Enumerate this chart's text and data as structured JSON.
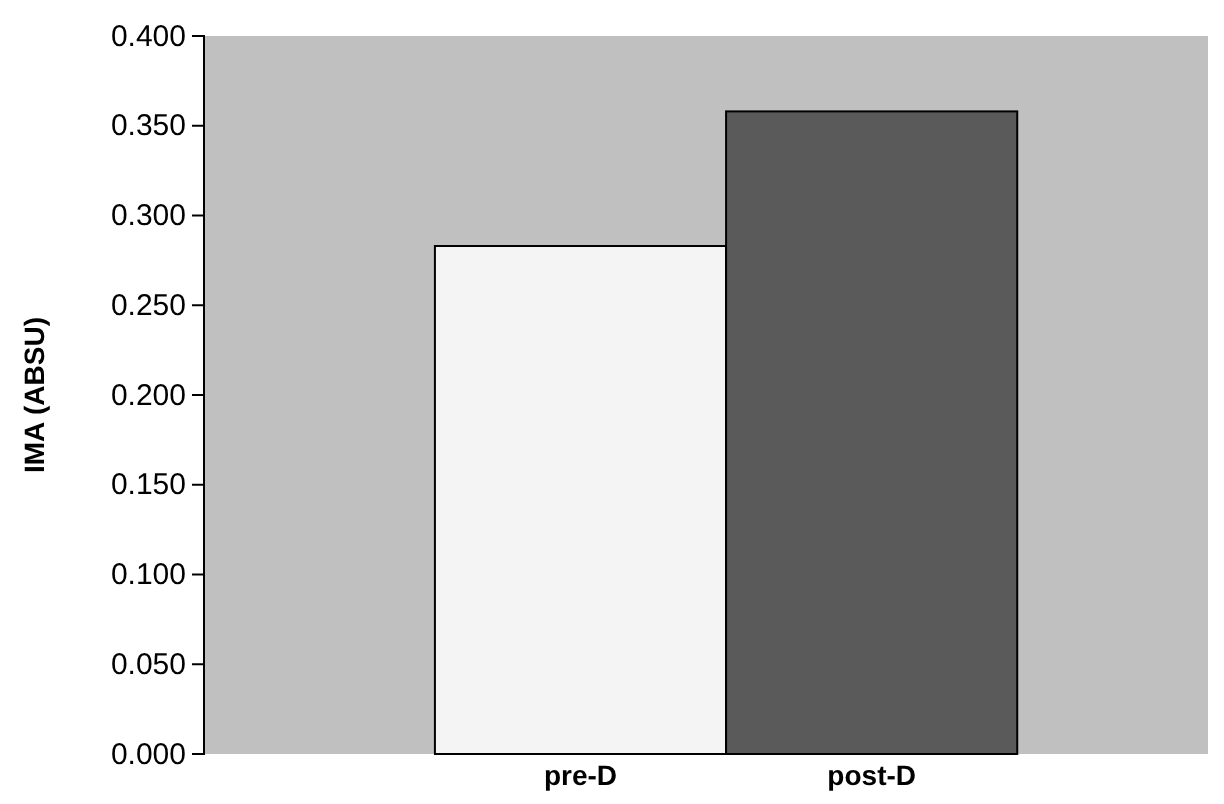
{
  "chart_data": {
    "type": "bar",
    "ylabel": "IMA (ABSU)",
    "categories": [
      "pre-D",
      "post-D"
    ],
    "values": [
      0.283,
      0.358
    ],
    "colors": [
      "#f4f4f4",
      "#5a5a5a"
    ],
    "ylim": [
      0,
      0.4
    ],
    "yticks": [
      {
        "value": 0,
        "label": "0.000"
      },
      {
        "value": 0.05,
        "label": "0.050"
      },
      {
        "value": 0.1,
        "label": "0.100"
      },
      {
        "value": 0.15,
        "label": "0.150"
      },
      {
        "value": 0.2,
        "label": "0.200"
      },
      {
        "value": 0.25,
        "label": "0.250"
      },
      {
        "value": 0.3,
        "label": "0.300"
      },
      {
        "value": 0.35,
        "label": "0.350"
      },
      {
        "value": 0.4,
        "label": "0.400"
      }
    ],
    "grid": false
  }
}
